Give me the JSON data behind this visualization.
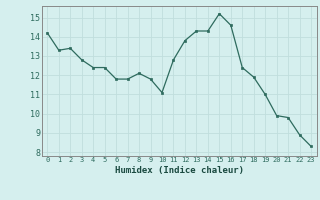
{
  "x": [
    0,
    1,
    2,
    3,
    4,
    5,
    6,
    7,
    8,
    9,
    10,
    11,
    12,
    13,
    14,
    15,
    16,
    17,
    18,
    19,
    20,
    21,
    22,
    23
  ],
  "y": [
    14.2,
    13.3,
    13.4,
    12.8,
    12.4,
    12.4,
    11.8,
    11.8,
    12.1,
    11.8,
    11.1,
    12.8,
    13.8,
    14.3,
    14.3,
    15.2,
    14.6,
    12.4,
    11.9,
    11.0,
    9.9,
    9.8,
    8.9,
    8.3
  ],
  "xlabel": "Humidex (Indice chaleur)",
  "ylim": [
    7.8,
    15.6
  ],
  "xlim": [
    -0.5,
    23.5
  ],
  "yticks": [
    8,
    9,
    10,
    11,
    12,
    13,
    14,
    15
  ],
  "xticks": [
    0,
    1,
    2,
    3,
    4,
    5,
    6,
    7,
    8,
    9,
    10,
    11,
    12,
    13,
    14,
    15,
    16,
    17,
    18,
    19,
    20,
    21,
    22,
    23
  ],
  "line_color": "#2e6b5e",
  "marker_color": "#2e6b5e",
  "bg_color": "#d5efee",
  "grid_color": "#c0dedd",
  "axes_color": "#888888",
  "tick_label_color": "#2e6b5e",
  "xlabel_color": "#1a4a40"
}
